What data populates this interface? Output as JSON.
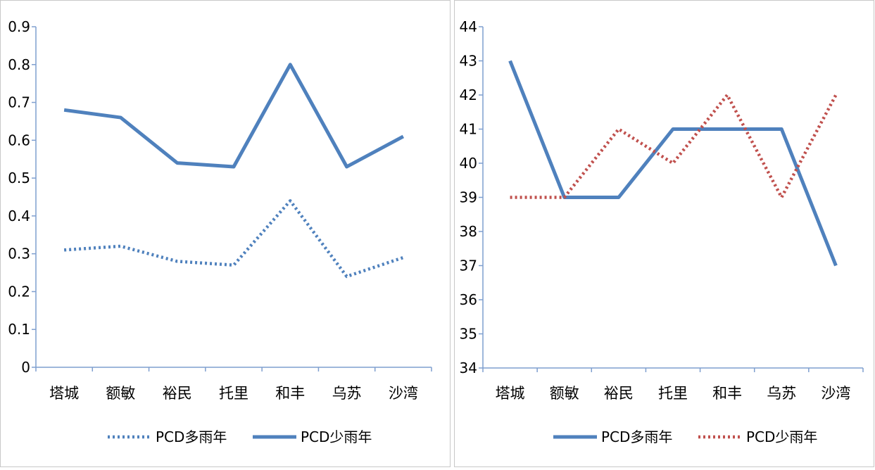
{
  "chart_data": [
    {
      "type": "line",
      "categories": [
        "塔城",
        "额敏",
        "裕民",
        "托里",
        "和丰",
        "乌苏",
        "沙湾"
      ],
      "ylim": [
        0,
        0.9
      ],
      "yticks": [
        "0",
        "0.1",
        "0.2",
        "0.3",
        "0.4",
        "0.5",
        "0.6",
        "0.7",
        "0.8",
        "0.9"
      ],
      "grid": false,
      "legend_position": "bottom",
      "series": [
        {
          "name": "PCD多雨年",
          "values": [
            0.31,
            0.32,
            0.28,
            0.27,
            0.44,
            0.24,
            0.29
          ],
          "color": "#4f81bd",
          "style": "dotted"
        },
        {
          "name": "PCD少雨年",
          "values": [
            0.68,
            0.66,
            0.54,
            0.53,
            0.8,
            0.53,
            0.61
          ],
          "color": "#4f81bd",
          "style": "solid"
        }
      ]
    },
    {
      "type": "line",
      "categories": [
        "塔城",
        "额敏",
        "裕民",
        "托里",
        "和丰",
        "乌苏",
        "沙湾"
      ],
      "ylim": [
        34,
        44
      ],
      "yticks": [
        "34",
        "35",
        "36",
        "37",
        "38",
        "39",
        "40",
        "41",
        "42",
        "43",
        "44"
      ],
      "grid": false,
      "legend_position": "bottom",
      "series": [
        {
          "name": "PCD多雨年",
          "values": [
            43,
            39,
            39,
            41,
            41,
            41,
            37
          ],
          "color": "#4f81bd",
          "style": "solid"
        },
        {
          "name": "PCD少雨年",
          "values": [
            39,
            39,
            41,
            40,
            42,
            39,
            42
          ],
          "color": "#c0504d",
          "style": "dotted"
        }
      ]
    }
  ]
}
